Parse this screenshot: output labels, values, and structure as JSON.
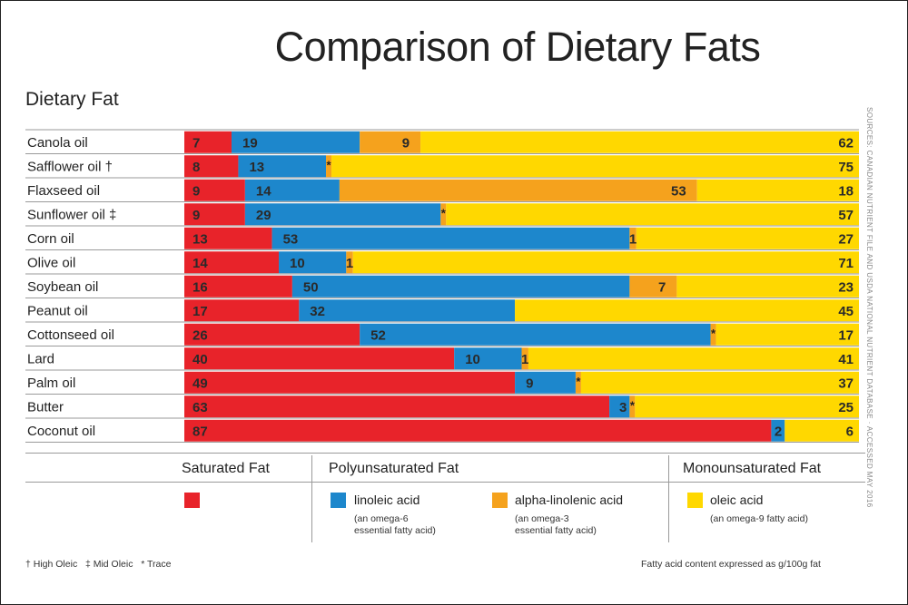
{
  "title": "Comparison of Dietary Fats",
  "axis_title": "Dietary Fat",
  "source_note": "SOURCES: CANADIAN NUTRIENT FILE AND USDA NATIONAL NUTRIENT DATABASE · ACCESSED MAY 2016",
  "colors": {
    "saturated": "#e8232a",
    "linoleic": "#1d87cc",
    "alpha_linolenic": "#f5a21d",
    "oleic": "#ffd800"
  },
  "chart_data": {
    "type": "bar",
    "orientation": "horizontal",
    "stacked": true,
    "units": "g/100g fat",
    "categories": [
      "Canola oil",
      "Safflower oil †",
      "Flaxseed oil",
      "Sunflower oil ‡",
      "Corn oil",
      "Olive oil",
      "Soybean oil",
      "Peanut oil",
      "Cottonseed oil",
      "Lard",
      "Palm oil",
      "Butter",
      "Coconut oil"
    ],
    "series": [
      {
        "name": "Saturated Fat",
        "color": "#e8232a",
        "values": [
          7,
          8,
          9,
          9,
          13,
          14,
          16,
          17,
          26,
          40,
          49,
          63,
          87
        ]
      },
      {
        "name": "linoleic acid",
        "color": "#1d87cc",
        "values": [
          19,
          13,
          14,
          29,
          53,
          10,
          50,
          32,
          52,
          10,
          9,
          3,
          2
        ]
      },
      {
        "name": "alpha-linolenic acid",
        "color": "#f5a21d",
        "values": [
          9,
          "*",
          53,
          "*",
          1,
          1,
          7,
          null,
          "*",
          1,
          "*",
          "*",
          null
        ]
      },
      {
        "name": "oleic acid",
        "color": "#ffd800",
        "values": [
          62,
          75,
          18,
          57,
          27,
          71,
          23,
          45,
          17,
          41,
          37,
          25,
          6
        ]
      }
    ]
  },
  "legend": {
    "saturated_head": "Saturated Fat",
    "poly_head": "Polyunsaturated Fat",
    "mono_head": "Monounsaturated Fat",
    "linoleic_name": "linoleic acid",
    "linoleic_note_1": "(an omega-6",
    "linoleic_note_2": "essential fatty acid)",
    "alpha_name": "alpha-linolenic acid",
    "alpha_note_1": "(an omega-3",
    "alpha_note_2": "essential fatty acid)",
    "oleic_name": "oleic acid",
    "oleic_note": "(an omega-9 fatty acid)"
  },
  "footnotes": {
    "left": "† High Oleic   ‡ Mid Oleic   * Trace",
    "right": "Fatty acid content expressed as g/100g fat"
  }
}
